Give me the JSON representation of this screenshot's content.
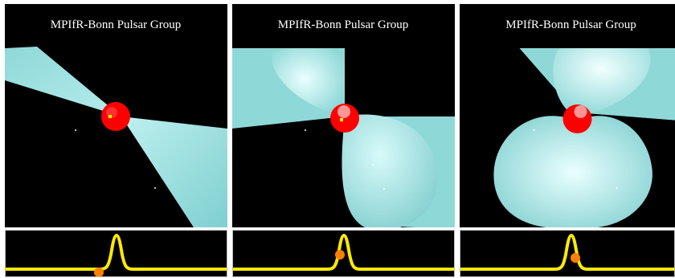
{
  "panels": [
    {
      "title": "MPIfR-Bonn Pulsar Group",
      "phase_marker": "left-base"
    },
    {
      "title": "MPIfR-Bonn Pulsar Group",
      "phase_marker": "rising-peak"
    },
    {
      "title": "MPIfR-Bonn Pulsar Group",
      "phase_marker": "rising-peak"
    }
  ],
  "colors": {
    "background": "#000000",
    "beam": "#8fd8d8",
    "beam_highlight": "#e8ffff",
    "star": "#ff0000",
    "pole": "#ffff00",
    "pulse_curve": "#ffea00",
    "phase_marker": "#ff7f00",
    "frame": "#bfbfbf"
  }
}
